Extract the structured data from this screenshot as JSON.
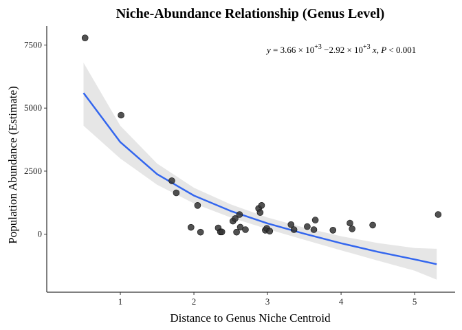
{
  "chart_data": {
    "type": "scatter",
    "title": "Niche-Abundance Relationship (Genus Level)",
    "xlabel": "Distance to Genus Niche Centroid",
    "ylabel": "Population Abundance (Estimate)",
    "xlim": [
      0.0,
      5.55
    ],
    "ylim": [
      -2300,
      8250
    ],
    "xticks": [
      1,
      2,
      3,
      4,
      5
    ],
    "yticks": [
      0,
      2500,
      5000,
      7500
    ],
    "grid": false,
    "legend": "none",
    "points": [
      {
        "x": 0.52,
        "y": 7780
      },
      {
        "x": 1.01,
        "y": 4720
      },
      {
        "x": 1.7,
        "y": 2120
      },
      {
        "x": 1.76,
        "y": 1640
      },
      {
        "x": 1.96,
        "y": 270
      },
      {
        "x": 2.05,
        "y": 1140
      },
      {
        "x": 2.09,
        "y": 80
      },
      {
        "x": 2.33,
        "y": 250
      },
      {
        "x": 2.36,
        "y": 90
      },
      {
        "x": 2.38,
        "y": 90
      },
      {
        "x": 2.53,
        "y": 520
      },
      {
        "x": 2.56,
        "y": 620
      },
      {
        "x": 2.58,
        "y": 80
      },
      {
        "x": 2.63,
        "y": 280
      },
      {
        "x": 2.62,
        "y": 780
      },
      {
        "x": 2.7,
        "y": 180
      },
      {
        "x": 2.88,
        "y": 1020
      },
      {
        "x": 2.9,
        "y": 860
      },
      {
        "x": 2.92,
        "y": 1140
      },
      {
        "x": 2.97,
        "y": 160
      },
      {
        "x": 2.99,
        "y": 230
      },
      {
        "x": 3.03,
        "y": 120
      },
      {
        "x": 3.32,
        "y": 380
      },
      {
        "x": 3.36,
        "y": 180
      },
      {
        "x": 3.54,
        "y": 300
      },
      {
        "x": 3.63,
        "y": 180
      },
      {
        "x": 3.65,
        "y": 560
      },
      {
        "x": 3.89,
        "y": 160
      },
      {
        "x": 4.12,
        "y": 440
      },
      {
        "x": 4.15,
        "y": 210
      },
      {
        "x": 4.43,
        "y": 360
      },
      {
        "x": 5.32,
        "y": 780
      }
    ],
    "fit": {
      "x": [
        0.5,
        1.0,
        1.5,
        2.0,
        2.5,
        3.0,
        3.5,
        4.0,
        4.5,
        5.0,
        5.3
      ],
      "y": [
        5600,
        3650,
        2380,
        1530,
        920,
        430,
        20,
        -360,
        -700,
        -1000,
        -1190
      ],
      "ci_lower": [
        4300,
        3000,
        1960,
        1220,
        660,
        200,
        -220,
        -640,
        -1050,
        -1450,
        -1800
      ],
      "ci_upper": [
        6800,
        4300,
        2800,
        1840,
        1180,
        660,
        260,
        -80,
        -350,
        -550,
        -580
      ],
      "color": "#3366ee",
      "band_color": "#e6e6e6"
    },
    "point_color": "#333333",
    "annotation": {
      "y": "y",
      "eq": " = 3.66",
      "times1": " × 10",
      "exp1": "+3",
      "minus": " −2.92 × 10",
      "exp2": "+3",
      "x": " x",
      "comma": ", ",
      "P": "P",
      "pval": " < 0.001"
    }
  }
}
